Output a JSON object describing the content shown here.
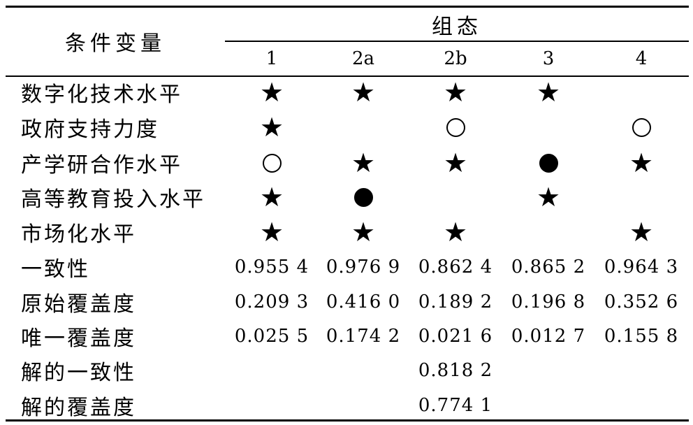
{
  "header": {
    "condition_label": "条件变量",
    "group_label": "组态",
    "columns": [
      "1",
      "2a",
      "2b",
      "3",
      "4"
    ]
  },
  "rows": [
    {
      "label": "数字化技术水平",
      "cells": [
        "star",
        "star",
        "star",
        "star",
        ""
      ]
    },
    {
      "label": "政府支持力度",
      "cells": [
        "star",
        "",
        "hollow",
        "",
        "hollow"
      ]
    },
    {
      "label": "产学研合作水平",
      "cells": [
        "hollow",
        "star",
        "star",
        "solid",
        "star"
      ]
    },
    {
      "label": "高等教育投入水平",
      "cells": [
        "star",
        "solid",
        "",
        "star",
        ""
      ]
    },
    {
      "label": "市场化水平",
      "cells": [
        "star",
        "star",
        "star",
        "",
        "star"
      ]
    }
  ],
  "metrics": [
    {
      "label": "一致性",
      "values": [
        "0.955 4",
        "0.976 9",
        "0.862 4",
        "0.865 2",
        "0.964 3"
      ]
    },
    {
      "label": "原始覆盖度",
      "values": [
        "0.209 3",
        "0.416 0",
        "0.189 2",
        "0.196 8",
        "0.352 6"
      ]
    },
    {
      "label": "唯一覆盖度",
      "values": [
        "0.025 5",
        "0.174 2",
        "0.021 6",
        "0.012 7",
        "0.155 8"
      ]
    }
  ],
  "solution": [
    {
      "label": "解的一致性",
      "value": "0.818 2"
    },
    {
      "label": "解的覆盖度",
      "value": "0.774 1"
    }
  ],
  "symbols": {
    "star": "★"
  }
}
